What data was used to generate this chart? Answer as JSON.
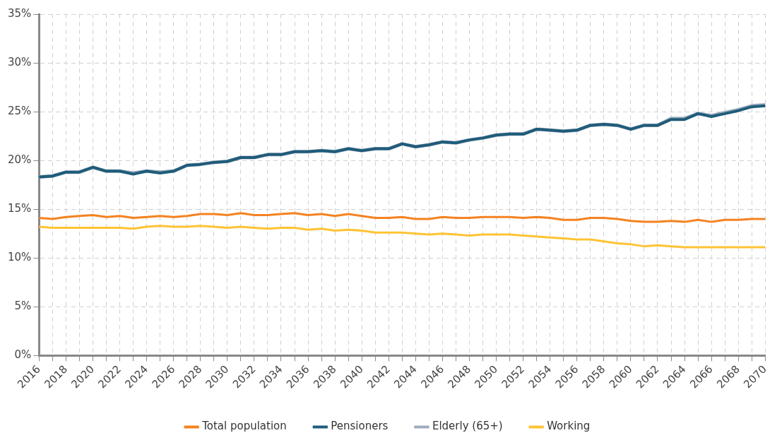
{
  "chart_data": {
    "type": "line",
    "categories": [
      "2016",
      null,
      "2018",
      null,
      "2020",
      null,
      "2022",
      null,
      "2024",
      null,
      "2026",
      null,
      "2028",
      null,
      "2030",
      null,
      "2032",
      null,
      "2034",
      null,
      "2036",
      null,
      "2038",
      null,
      "2040",
      null,
      "2042",
      null,
      "2044",
      null,
      "2046",
      null,
      "2048",
      null,
      "2050",
      null,
      "2052",
      null,
      "2054",
      null,
      "2056",
      null,
      "2058",
      null,
      "2060",
      null,
      "2062",
      null,
      "2064",
      null,
      "2066",
      null,
      "2068",
      null,
      "2070"
    ],
    "series": [
      {
        "name": "Total population",
        "color": "#f58220",
        "values": [
          14.1,
          14.0,
          14.2,
          14.3,
          14.4,
          14.2,
          14.3,
          14.1,
          14.2,
          14.3,
          14.2,
          14.3,
          14.5,
          14.5,
          14.4,
          14.6,
          14.4,
          14.4,
          14.5,
          14.6,
          14.4,
          14.5,
          14.3,
          14.5,
          14.3,
          14.1,
          14.1,
          14.2,
          14.0,
          14.0,
          14.2,
          14.1,
          14.1,
          14.2,
          14.2,
          14.2,
          14.1,
          14.2,
          14.1,
          13.9,
          13.9,
          14.1,
          14.1,
          14.0,
          13.8,
          13.7,
          13.7,
          13.8,
          13.7,
          13.9,
          13.7,
          13.9,
          13.9,
          14.0,
          14.0
        ]
      },
      {
        "name": "Pensioners",
        "color": "#1f5c7a",
        "values": [
          18.3,
          18.4,
          18.8,
          18.8,
          19.3,
          18.9,
          18.9,
          18.6,
          18.9,
          18.7,
          18.9,
          19.5,
          19.6,
          19.8,
          19.9,
          20.3,
          20.3,
          20.6,
          20.6,
          20.9,
          20.9,
          21.0,
          20.9,
          21.2,
          21.0,
          21.2,
          21.2,
          21.7,
          21.4,
          21.6,
          21.9,
          21.8,
          22.1,
          22.3,
          22.6,
          22.7,
          22.7,
          23.2,
          23.1,
          23.0,
          23.1,
          23.6,
          23.7,
          23.6,
          23.2,
          23.6,
          23.6,
          24.2,
          24.2,
          24.8,
          24.5,
          24.8,
          25.1,
          25.5,
          25.6
        ]
      },
      {
        "name": "Elderly (65+)",
        "color": "#9eadbd",
        "values": [
          18.3,
          18.4,
          18.8,
          18.8,
          19.3,
          18.9,
          18.9,
          18.7,
          18.9,
          18.8,
          18.9,
          19.5,
          19.6,
          19.8,
          19.9,
          20.3,
          20.3,
          20.6,
          20.6,
          20.9,
          20.9,
          21.0,
          20.9,
          21.2,
          21.0,
          21.2,
          21.2,
          21.7,
          21.4,
          21.6,
          21.9,
          21.8,
          22.1,
          22.3,
          22.6,
          22.7,
          22.7,
          23.2,
          23.1,
          23.0,
          23.1,
          23.6,
          23.7,
          23.6,
          23.2,
          23.6,
          23.6,
          24.3,
          24.3,
          24.8,
          24.6,
          24.9,
          25.2,
          25.6,
          25.7
        ]
      },
      {
        "name": "Working",
        "color": "#ffc334",
        "values": [
          13.2,
          13.1,
          13.1,
          13.1,
          13.1,
          13.1,
          13.1,
          13.0,
          13.2,
          13.3,
          13.2,
          13.2,
          13.3,
          13.2,
          13.1,
          13.2,
          13.1,
          13.0,
          13.1,
          13.1,
          12.9,
          13.0,
          12.8,
          12.9,
          12.8,
          12.6,
          12.6,
          12.6,
          12.5,
          12.4,
          12.5,
          12.4,
          12.3,
          12.4,
          12.4,
          12.4,
          12.3,
          12.2,
          12.1,
          12.0,
          11.9,
          11.9,
          11.7,
          11.5,
          11.4,
          11.2,
          11.3,
          11.2,
          11.1,
          11.1,
          11.1,
          11.1,
          11.1,
          11.1,
          11.1
        ]
      }
    ],
    "ylim": [
      0,
      35
    ],
    "yticks": [
      {
        "value": 0,
        "label": "0%"
      },
      {
        "value": 5,
        "label": "5%"
      },
      {
        "value": 10,
        "label": "10%"
      },
      {
        "value": 15,
        "label": "15%"
      },
      {
        "value": 20,
        "label": "20%"
      },
      {
        "value": 25,
        "label": "25%"
      },
      {
        "value": 30,
        "label": "30%"
      },
      {
        "value": 35,
        "label": "35%"
      }
    ],
    "grid": true,
    "legend": "bottom",
    "marker": "none",
    "line_style": "solid"
  }
}
